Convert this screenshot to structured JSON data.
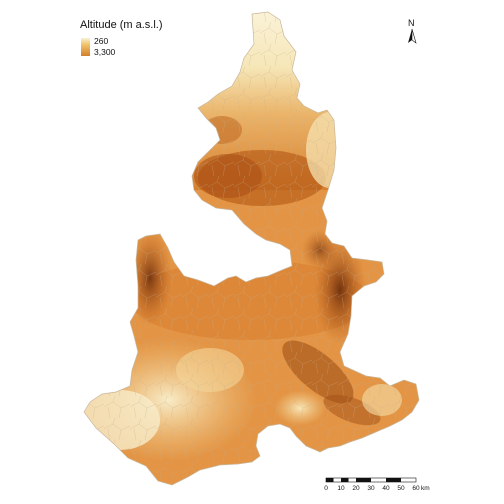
{
  "legend": {
    "title": "Altitude (m a.s.l.)",
    "max_label": "260",
    "min_label": "3,300",
    "gradient_colors": [
      "#f8f1d6",
      "#f1c56e",
      "#e08d33",
      "#b95a17",
      "#7a3610"
    ]
  },
  "north_arrow": {
    "label": "N",
    "icon": "north-arrow-icon"
  },
  "scale_bar": {
    "unit": "km",
    "ticks": [
      "0",
      "10",
      "20",
      "30",
      "40",
      "50",
      "60"
    ]
  },
  "colors": {
    "lowland": "#f8f1d6",
    "mid": "#e8a04c",
    "highland": "#b95a17",
    "peak": "#7a3610",
    "boundary": "#c9b79c"
  }
}
